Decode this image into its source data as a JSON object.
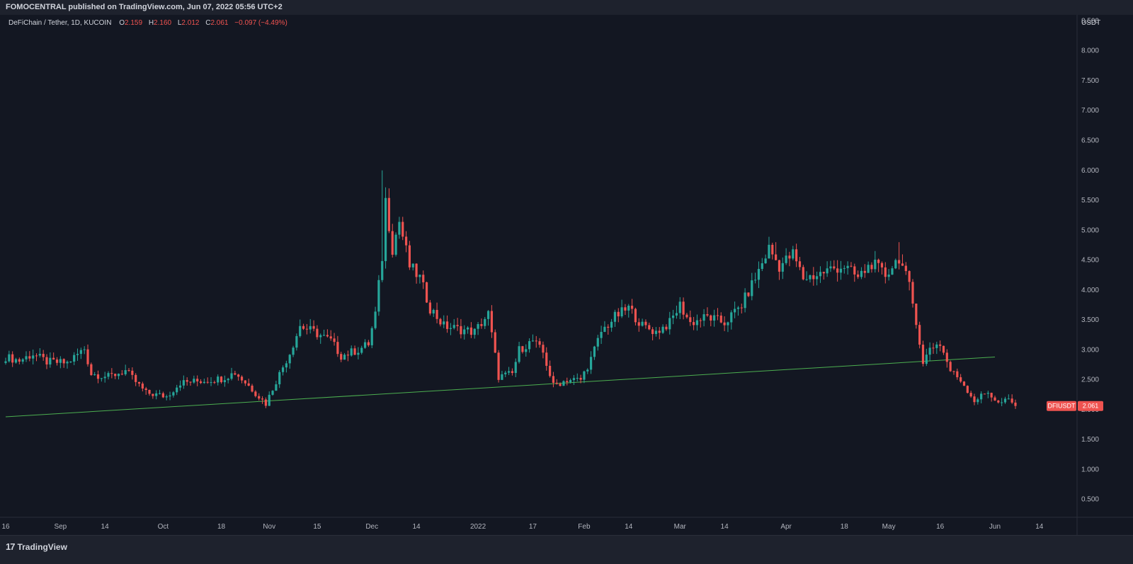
{
  "header": {
    "published": "FOMOCENTRAL published on TradingView.com, Jun 07, 2022 05:56 UTC+2"
  },
  "legend": {
    "symbol": "DeFiChain / Tether, 1D, KUCOIN",
    "o_label": "O",
    "o": "2.159",
    "h_label": "H",
    "h": "2.160",
    "l_label": "L",
    "l": "2.012",
    "c_label": "C",
    "c": "2.061",
    "change": "−0.097 (−4.49%)"
  },
  "footer": {
    "brand": "TradingView",
    "mark": "17"
  },
  "colors": {
    "up": "#26a69a",
    "down": "#ef5350",
    "trend": "#4caf50",
    "bg": "#131722"
  },
  "chart_data": {
    "type": "candlestick",
    "title": "DeFiChain / Tether, 1D, KUCOIN",
    "price_scale_label": "USDT",
    "ylim": [
      0.2,
      8.6
    ],
    "y_ticks": [
      "0.500",
      "1.000",
      "1.500",
      "2.000",
      "2.500",
      "3.000",
      "3.500",
      "4.000",
      "4.500",
      "5.000",
      "5.500",
      "6.000",
      "6.500",
      "7.000",
      "7.500",
      "8.000",
      "8.500"
    ],
    "x_range": [
      "2021-08-16",
      "2022-06-25"
    ],
    "x_ticks": [
      {
        "date": "2021-08-16",
        "label": "16"
      },
      {
        "date": "2021-09-01",
        "label": "Sep"
      },
      {
        "date": "2021-09-14",
        "label": "14"
      },
      {
        "date": "2021-10-01",
        "label": "Oct"
      },
      {
        "date": "2021-10-18",
        "label": "18"
      },
      {
        "date": "2021-11-01",
        "label": "Nov"
      },
      {
        "date": "2021-11-15",
        "label": "15"
      },
      {
        "date": "2021-12-01",
        "label": "Dec"
      },
      {
        "date": "2021-12-14",
        "label": "14"
      },
      {
        "date": "2022-01-01",
        "label": "2022"
      },
      {
        "date": "2022-01-17",
        "label": "17"
      },
      {
        "date": "2022-02-01",
        "label": "Feb"
      },
      {
        "date": "2022-02-14",
        "label": "14"
      },
      {
        "date": "2022-03-01",
        "label": "Mar"
      },
      {
        "date": "2022-03-14",
        "label": "14"
      },
      {
        "date": "2022-04-01",
        "label": "Apr"
      },
      {
        "date": "2022-04-18",
        "label": "18"
      },
      {
        "date": "2022-05-01",
        "label": "May"
      },
      {
        "date": "2022-05-16",
        "label": "16"
      },
      {
        "date": "2022-06-01",
        "label": "Jun"
      },
      {
        "date": "2022-06-14",
        "label": "14"
      }
    ],
    "closes": [
      {
        "date": "2021-08-16",
        "close": 2.88
      },
      {
        "date": "2021-08-20",
        "close": 2.82
      },
      {
        "date": "2021-08-24",
        "close": 2.93
      },
      {
        "date": "2021-08-28",
        "close": 2.8
      },
      {
        "date": "2021-09-03",
        "close": 2.78
      },
      {
        "date": "2021-09-08",
        "close": 3.02
      },
      {
        "date": "2021-09-10",
        "close": 2.6
      },
      {
        "date": "2021-09-15",
        "close": 2.55
      },
      {
        "date": "2021-09-20",
        "close": 2.65
      },
      {
        "date": "2021-09-26",
        "close": 2.28
      },
      {
        "date": "2021-10-02",
        "close": 2.22
      },
      {
        "date": "2021-10-06",
        "close": 2.45
      },
      {
        "date": "2021-10-12",
        "close": 2.48
      },
      {
        "date": "2021-10-18",
        "close": 2.52
      },
      {
        "date": "2021-10-22",
        "close": 2.62
      },
      {
        "date": "2021-10-26",
        "close": 2.4
      },
      {
        "date": "2021-10-31",
        "close": 2.1
      },
      {
        "date": "2021-11-03",
        "close": 2.48
      },
      {
        "date": "2021-11-07",
        "close": 2.95
      },
      {
        "date": "2021-11-10",
        "close": 3.4
      },
      {
        "date": "2021-11-14",
        "close": 3.3
      },
      {
        "date": "2021-11-19",
        "close": 3.15
      },
      {
        "date": "2021-11-22",
        "close": 2.9
      },
      {
        "date": "2021-11-27",
        "close": 3.0
      },
      {
        "date": "2021-11-30",
        "close": 3.1
      },
      {
        "date": "2021-12-02",
        "close": 3.6
      },
      {
        "date": "2021-12-04",
        "close": 4.55
      },
      {
        "date": "2021-12-05",
        "close": 5.5
      },
      {
        "date": "2021-12-07",
        "close": 4.7
      },
      {
        "date": "2021-12-09",
        "close": 5.15
      },
      {
        "date": "2021-12-12",
        "close": 4.4
      },
      {
        "date": "2021-12-15",
        "close": 4.2
      },
      {
        "date": "2021-12-18",
        "close": 3.7
      },
      {
        "date": "2021-12-22",
        "close": 3.4
      },
      {
        "date": "2021-12-26",
        "close": 3.35
      },
      {
        "date": "2021-12-31",
        "close": 3.3
      },
      {
        "date": "2022-01-04",
        "close": 3.6
      },
      {
        "date": "2022-01-07",
        "close": 2.55
      },
      {
        "date": "2022-01-11",
        "close": 2.6
      },
      {
        "date": "2022-01-13",
        "close": 3.0
      },
      {
        "date": "2022-01-17",
        "close": 3.15
      },
      {
        "date": "2022-01-20",
        "close": 2.95
      },
      {
        "date": "2022-01-23",
        "close": 2.4
      },
      {
        "date": "2022-01-27",
        "close": 2.5
      },
      {
        "date": "2022-01-31",
        "close": 2.5
      },
      {
        "date": "2022-02-03",
        "close": 2.85
      },
      {
        "date": "2022-02-06",
        "close": 3.3
      },
      {
        "date": "2022-02-10",
        "close": 3.55
      },
      {
        "date": "2022-02-14",
        "close": 3.7
      },
      {
        "date": "2022-02-18",
        "close": 3.4
      },
      {
        "date": "2022-02-22",
        "close": 3.3
      },
      {
        "date": "2022-02-26",
        "close": 3.45
      },
      {
        "date": "2022-03-01",
        "close": 3.75
      },
      {
        "date": "2022-03-04",
        "close": 3.45
      },
      {
        "date": "2022-03-09",
        "close": 3.55
      },
      {
        "date": "2022-03-14",
        "close": 3.45
      },
      {
        "date": "2022-03-19",
        "close": 3.75
      },
      {
        "date": "2022-03-23",
        "close": 4.2
      },
      {
        "date": "2022-03-27",
        "close": 4.7
      },
      {
        "date": "2022-03-30",
        "close": 4.4
      },
      {
        "date": "2022-04-03",
        "close": 4.6
      },
      {
        "date": "2022-04-06",
        "close": 4.2
      },
      {
        "date": "2022-04-10",
        "close": 4.25
      },
      {
        "date": "2022-04-14",
        "close": 4.35
      },
      {
        "date": "2022-04-18",
        "close": 4.4
      },
      {
        "date": "2022-04-22",
        "close": 4.2
      },
      {
        "date": "2022-04-26",
        "close": 4.45
      },
      {
        "date": "2022-04-30",
        "close": 4.25
      },
      {
        "date": "2022-05-04",
        "close": 4.55
      },
      {
        "date": "2022-05-07",
        "close": 4.05
      },
      {
        "date": "2022-05-09",
        "close": 3.5
      },
      {
        "date": "2022-05-11",
        "close": 2.75
      },
      {
        "date": "2022-05-13",
        "close": 3.05
      },
      {
        "date": "2022-05-16",
        "close": 3.1
      },
      {
        "date": "2022-05-19",
        "close": 2.65
      },
      {
        "date": "2022-05-22",
        "close": 2.5
      },
      {
        "date": "2022-05-26",
        "close": 2.15
      },
      {
        "date": "2022-05-30",
        "close": 2.3
      },
      {
        "date": "2022-06-02",
        "close": 2.1
      },
      {
        "date": "2022-06-05",
        "close": 2.16
      },
      {
        "date": "2022-06-07",
        "close": 2.061
      }
    ],
    "spikes": [
      {
        "date": "2021-12-04",
        "high": 6.0
      },
      {
        "date": "2021-12-06",
        "high": 5.65
      },
      {
        "date": "2022-03-29",
        "high": 4.8
      },
      {
        "date": "2022-05-04",
        "high": 4.8
      }
    ],
    "trendline": {
      "start": {
        "date": "2021-08-16",
        "value": 1.88
      },
      "end": {
        "date": "2022-06-01",
        "value": 2.88
      }
    },
    "last_price": {
      "symbol": "DFIUSDT",
      "value": "2.061"
    },
    "grid": false
  }
}
